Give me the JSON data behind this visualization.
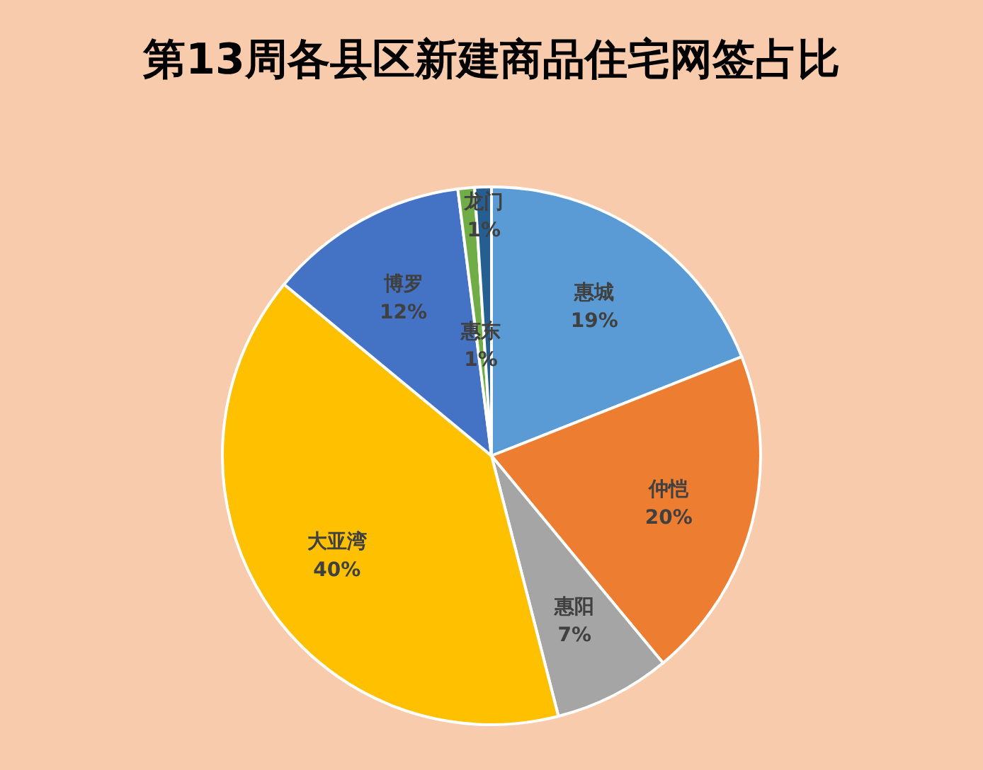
{
  "chart_data": {
    "type": "pie",
    "title": "第13周各县区新建商品住宅网签占比",
    "categories": [
      "惠城",
      "仲恺",
      "惠阳",
      "大亚湾",
      "博罗",
      "惠东",
      "龙门"
    ],
    "values": [
      19,
      20,
      7,
      40,
      12,
      1,
      1
    ],
    "colors": [
      "#5b9bd5",
      "#ed7d31",
      "#a5a5a5",
      "#ffc000",
      "#4472c4",
      "#70ad47",
      "#255e91"
    ],
    "value_labels": [
      "19%",
      "20%",
      "7%",
      "40%",
      "12%",
      "1%",
      "1%"
    ],
    "legend": false
  }
}
